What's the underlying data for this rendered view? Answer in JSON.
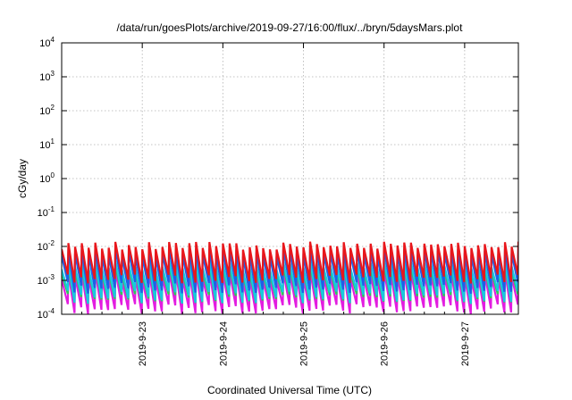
{
  "chart_data": {
    "type": "line",
    "title": "/data/run/goesPlots/archive/2019-09-27/16:00/flux/../bryn/5daysMars.plot",
    "xlabel": "Coordinated Universal Time (UTC)",
    "ylabel": "cGy/day",
    "y_scale": "log",
    "ylim": [
      0.0001,
      10000
    ],
    "y_tick_exponents": [
      -4,
      -3,
      -2,
      -1,
      0,
      1,
      2,
      3,
      4
    ],
    "y_tick_base": "10",
    "xlim_days": [
      "2019-09-22 00:00",
      "2019-09-27 16:00"
    ],
    "x_ticks": [
      "2019-9-23",
      "2019-9-24",
      "2019-9-25",
      "2019-9-26",
      "2019-9-27"
    ],
    "grid": true,
    "legend": "none",
    "series_pattern": "sawtooth, one cycle about every 2 hours",
    "series": [
      {
        "color": "#e8161b",
        "peak_range": [
          0.008,
          0.014
        ],
        "trough_range": [
          0.0008,
          0.0015
        ]
      },
      {
        "color": "#1f5fe6",
        "peak_range": [
          0.005,
          0.009
        ],
        "trough_range": [
          0.0004,
          0.0009
        ]
      },
      {
        "color": "#17c9e0",
        "peak_range": [
          0.002,
          0.004
        ],
        "trough_range": [
          0.0002,
          0.0005
        ]
      },
      {
        "color": "#2ec95a",
        "peak_range": [
          0.0015,
          0.003
        ],
        "trough_range": [
          0.0002,
          0.0004
        ]
      },
      {
        "color": "#e31ce0",
        "peak_range": [
          0.001,
          0.002
        ],
        "trough_range": [
          0.0001,
          0.0002
        ]
      }
    ]
  }
}
